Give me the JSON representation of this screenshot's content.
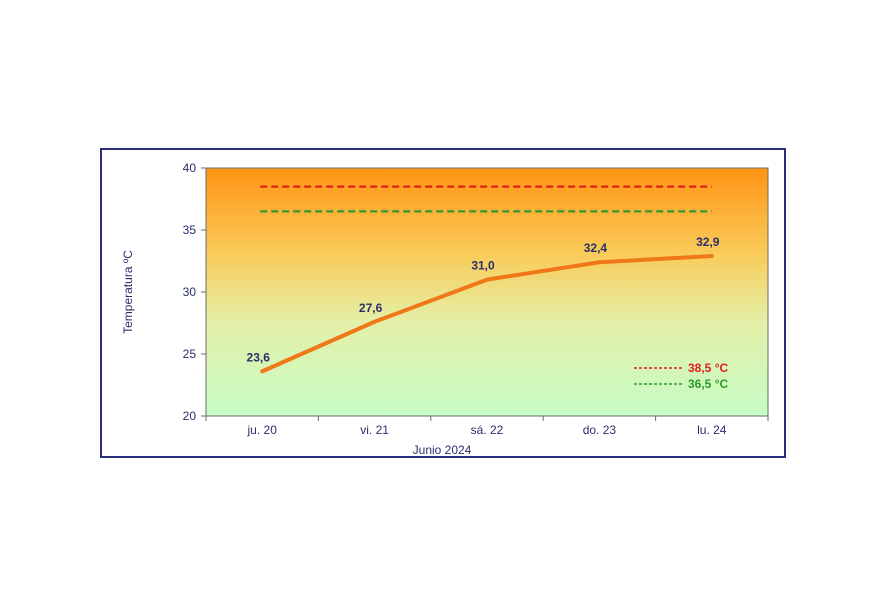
{
  "chart_data": {
    "type": "line",
    "categories": [
      "ju. 20",
      "vi. 21",
      "sá. 22",
      "do. 23",
      "lu. 24"
    ],
    "series": [
      {
        "values": [
          23.6,
          27.6,
          31.0,
          32.4,
          32.9
        ],
        "labels": [
          "23,6",
          "27,6",
          "31,0",
          "32,4",
          "32,9"
        ],
        "color": "#f07818"
      }
    ],
    "thresholds": [
      {
        "value": 38.5,
        "label": "38,5 °C",
        "color": "#e0201c"
      },
      {
        "value": 36.5,
        "label": "36,5 °C",
        "color": "#2e9a2e"
      }
    ],
    "xlabel": "Junio  2024",
    "ylabel": "Temperatura ºC",
    "ylim": [
      20,
      40
    ],
    "yticks": [
      20,
      25,
      30,
      35,
      40
    ],
    "legend_position": "bottom-right",
    "grid": false,
    "background_gradient": [
      "#ff9a1a",
      "#c8ff c8"
    ]
  }
}
